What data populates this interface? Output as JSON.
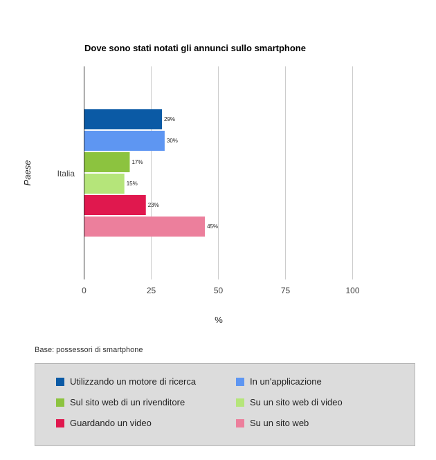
{
  "chart_data": {
    "type": "bar",
    "orientation": "horizontal",
    "title": "Dove sono stati notati gli annunci sullo smartphone",
    "xlabel": "%",
    "ylabel": "Paese",
    "categories": [
      "Italia"
    ],
    "xlim": [
      0,
      100
    ],
    "xticks": [
      0,
      25,
      50,
      75,
      100
    ],
    "grid": true,
    "legend_position": "bottom",
    "series": [
      {
        "name": "Utilizzando un motore di ricerca",
        "values": [
          29
        ],
        "label": "29%",
        "color": "#0b5aa5"
      },
      {
        "name": "In un'applicazione",
        "values": [
          30
        ],
        "label": "30%",
        "color": "#5e96f2"
      },
      {
        "name": "Sul sito web di un rivenditore",
        "values": [
          17
        ],
        "label": "17%",
        "color": "#8cc33f"
      },
      {
        "name": "Su un sito web di video",
        "values": [
          15
        ],
        "label": "15%",
        "color": "#b5e57a"
      },
      {
        "name": "Guardando un video",
        "values": [
          23
        ],
        "label": "23%",
        "color": "#e0184e"
      },
      {
        "name": "Su un sito web",
        "values": [
          45
        ],
        "label": "45%",
        "color": "#ec7f9c"
      }
    ]
  },
  "note": "Base: possessori di smartphone"
}
